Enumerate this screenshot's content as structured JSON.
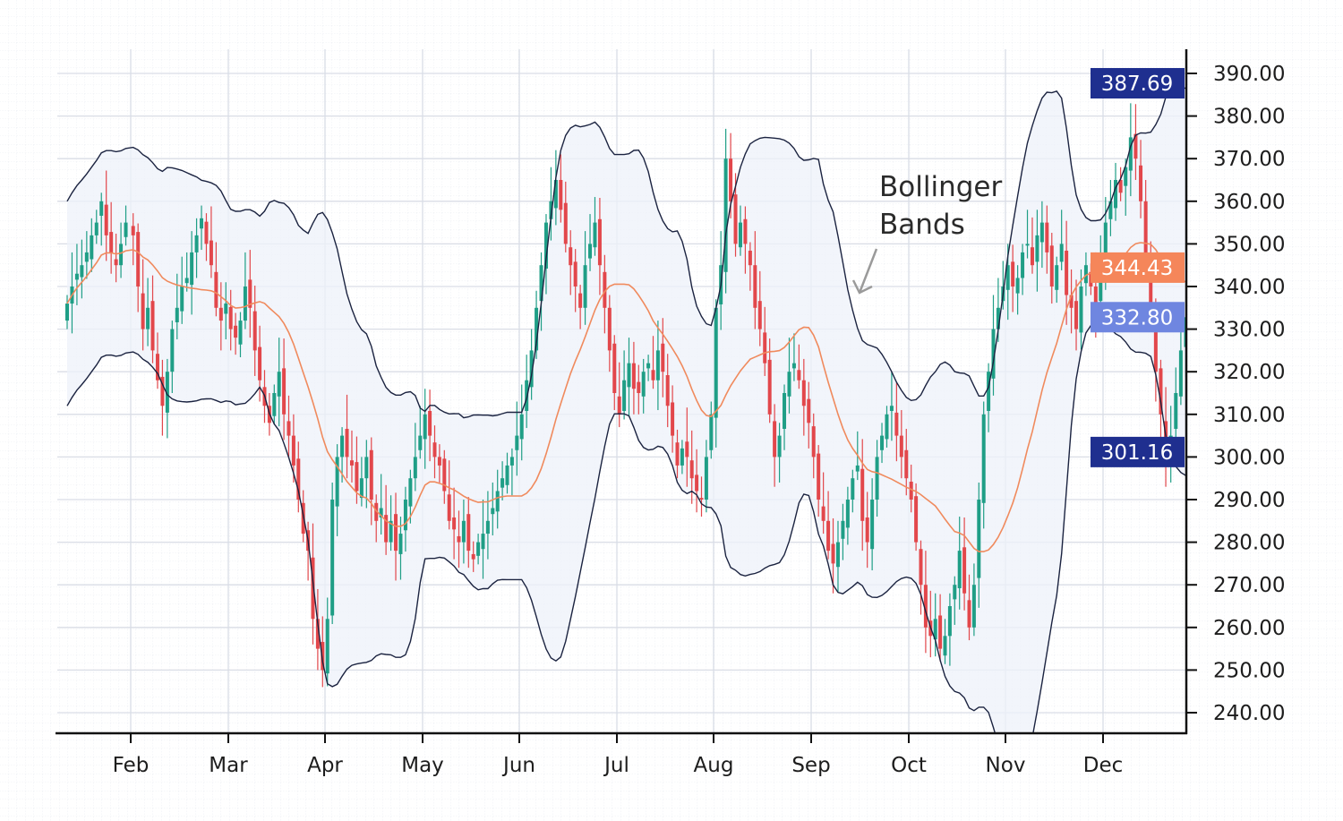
{
  "chart_data": {
    "type": "candlestick",
    "title": "",
    "indicator": "Bollinger Bands (20, 2)",
    "annotation": [
      "Bollinger",
      "Bands"
    ],
    "x_tick_labels": [
      "Feb",
      "Mar",
      "Apr",
      "May",
      "Jun",
      "Jul",
      "Aug",
      "Sep",
      "Oct",
      "Nov",
      "Dec"
    ],
    "month_days": [
      13,
      20,
      20,
      20,
      20,
      20,
      20,
      20,
      20,
      20,
      20,
      17
    ],
    "ylim": [
      235,
      392
    ],
    "y_ticks": [
      240,
      250,
      260,
      270,
      280,
      290,
      300,
      310,
      320,
      330,
      340,
      350,
      360,
      370,
      380,
      390
    ],
    "y_tick_labels": [
      "240.00",
      "250.00",
      "260.00",
      "270.00",
      "280.00",
      "290.00",
      "300.00",
      "310.00",
      "320.00",
      "330.00",
      "340.00",
      "350.00",
      "360.00",
      "370.00",
      "380.00",
      "390.00"
    ],
    "grid": true,
    "closes": [
      336,
      340,
      343,
      345,
      348,
      352,
      355,
      360,
      352,
      348,
      345,
      350,
      355,
      352,
      340,
      330,
      335,
      325,
      318,
      312,
      320,
      330,
      335,
      340,
      342,
      348,
      352,
      356,
      350,
      345,
      335,
      332,
      336,
      330,
      328,
      332,
      340,
      335,
      325,
      318,
      312,
      308,
      315,
      320,
      310,
      305,
      298,
      290,
      282,
      278,
      262,
      255,
      250,
      262,
      290,
      300,
      305,
      300,
      298,
      292,
      295,
      300,
      290,
      285,
      288,
      280,
      285,
      278,
      282,
      290,
      295,
      300,
      305,
      310,
      305,
      300,
      298,
      292,
      285,
      283,
      280,
      285,
      278,
      276,
      280,
      282,
      285,
      288,
      292,
      295,
      298,
      300,
      305,
      310,
      318,
      325,
      335,
      345,
      355,
      360,
      365,
      358,
      350,
      345,
      340,
      335,
      345,
      350,
      355,
      345,
      335,
      325,
      315,
      310,
      318,
      322,
      316,
      315,
      320,
      322,
      318,
      325,
      320,
      312,
      305,
      298,
      302,
      300,
      295,
      292,
      290,
      300,
      310,
      335,
      345,
      370,
      360,
      350,
      355,
      350,
      345,
      335,
      330,
      322,
      310,
      300,
      305,
      315,
      320,
      322,
      318,
      312,
      308,
      300,
      290,
      285,
      278,
      275,
      280,
      285,
      290,
      295,
      298,
      285,
      280,
      290,
      300,
      305,
      310,
      312,
      305,
      300,
      295,
      290,
      280,
      270,
      260,
      258,
      262,
      255,
      258,
      265,
      270,
      278,
      268,
      260,
      270,
      290,
      310,
      320,
      330,
      335,
      340,
      345,
      340,
      342,
      348,
      350,
      345,
      352,
      355,
      348,
      340,
      345,
      350,
      338,
      335,
      330,
      340,
      345,
      340,
      335,
      345,
      355,
      360,
      365,
      362,
      368,
      375,
      370,
      360,
      345,
      335,
      320,
      310,
      298,
      305,
      315,
      325,
      332.8
    ],
    "price_labels": {
      "upper_band": {
        "value": 387.69,
        "text": "387.69",
        "color": "#1f2f8f"
      },
      "middle_band": {
        "value": 344.43,
        "text": "344.43",
        "color": "#f5865a"
      },
      "last_price": {
        "value": 332.8,
        "text": "332.80",
        "color": "#6f86e0"
      },
      "lower_band": {
        "value": 301.16,
        "text": "301.16",
        "color": "#1f2f8f"
      }
    },
    "colors": {
      "up": "#1f9e86",
      "down": "#e2474b",
      "band": "#1b2340",
      "band_fill": "#eef2fa",
      "ma": "#f08a5d",
      "annotation_arrow": "#9a9a9a"
    }
  }
}
